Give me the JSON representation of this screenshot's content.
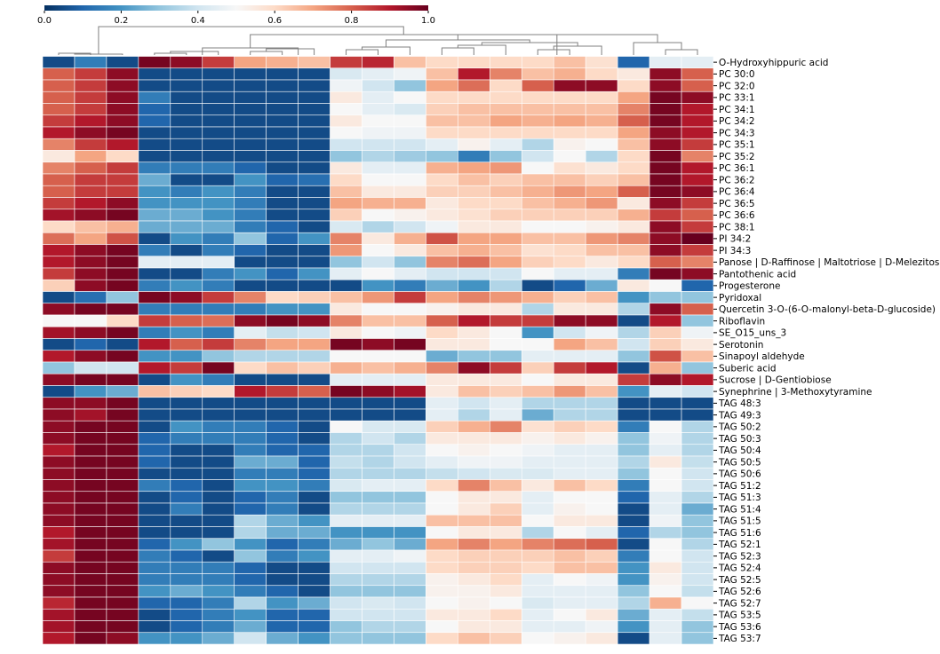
{
  "chart_data": {
    "type": "heatmap",
    "title": "",
    "xlabel": "",
    "ylabel": "",
    "colorbar": {
      "ticks": [
        "0.0",
        "0.2",
        "0.4",
        "0.6",
        "0.8",
        "1.0"
      ],
      "tick_values": [
        0,
        0.2,
        0.4,
        0.6,
        0.8,
        1.0
      ],
      "range": [
        0,
        1
      ],
      "colormap": "RdBu_r",
      "placement": "top-left"
    },
    "row_labels": [
      "O-Hydroxyhippuric acid",
      "PC 30:0",
      "PC 32:0",
      "PC 33:1",
      "PC 34:1",
      "PC 34:2",
      "PC 34:3",
      "PC 35:1",
      "PC 35:2",
      "PC 36:1",
      "PC 36:2",
      "PC 36:4",
      "PC 36:5",
      "PC 36:6",
      "PC 38:1",
      "PI 34:2",
      "PI 34:3",
      "Panose | D-Raffinose | Maltotriose | D-Melezitose",
      "Pantothenic acid",
      "Progesterone",
      "Pyridoxal",
      "Quercetin 3-O-(6-O-malonyl-beta-D-glucoside)",
      "Riboflavin",
      "SE_O15_uns_3",
      "Serotonin",
      "Sinapoyl aldehyde",
      "Suberic acid",
      "Sucrose | D-Gentiobiose",
      "Synephrine | 3-Methoxytyramine",
      "TAG 48:3",
      "TAG 49:3",
      "TAG 50:2",
      "TAG 50:3",
      "TAG 50:4",
      "TAG 50:5",
      "TAG 50:6",
      "TAG 51:2",
      "TAG 51:3",
      "TAG 51:4",
      "TAG 51:5",
      "TAG 51:6",
      "TAG 52:1",
      "TAG 52:3",
      "TAG 52:4",
      "TAG 52:5",
      "TAG 52:6",
      "TAG 52:7",
      "TAG 53:5",
      "TAG 53:6",
      "TAG 53:7"
    ],
    "n_columns": 21,
    "column_labels": [],
    "values": [
      [
        0.05,
        0.15,
        0.05,
        0.98,
        0.95,
        0.85,
        0.7,
        0.68,
        0.65,
        0.85,
        0.88,
        0.65,
        0.6,
        0.6,
        0.6,
        0.6,
        0.65,
        0.58,
        0.1,
        0.45,
        0.45
      ],
      [
        0.8,
        0.85,
        0.95,
        0.05,
        0.05,
        0.05,
        0.05,
        0.05,
        0.05,
        0.42,
        0.45,
        0.48,
        0.65,
        0.9,
        0.75,
        0.65,
        0.68,
        0.6,
        0.55,
        0.95,
        0.8
      ],
      [
        0.8,
        0.85,
        0.95,
        0.05,
        0.05,
        0.05,
        0.05,
        0.05,
        0.05,
        0.48,
        0.4,
        0.3,
        0.7,
        0.78,
        0.6,
        0.8,
        0.95,
        0.95,
        0.6,
        0.95,
        0.8
      ],
      [
        0.8,
        0.85,
        0.95,
        0.15,
        0.05,
        0.05,
        0.05,
        0.05,
        0.05,
        0.55,
        0.45,
        0.5,
        0.6,
        0.6,
        0.6,
        0.6,
        0.6,
        0.6,
        0.7,
        0.98,
        0.95
      ],
      [
        0.8,
        0.85,
        0.95,
        0.1,
        0.05,
        0.05,
        0.05,
        0.05,
        0.05,
        0.5,
        0.45,
        0.42,
        0.62,
        0.65,
        0.65,
        0.65,
        0.65,
        0.65,
        0.75,
        0.98,
        0.9
      ],
      [
        0.85,
        0.9,
        0.95,
        0.1,
        0.05,
        0.05,
        0.05,
        0.05,
        0.05,
        0.55,
        0.5,
        0.5,
        0.65,
        0.65,
        0.7,
        0.68,
        0.7,
        0.68,
        0.8,
        0.98,
        0.9
      ],
      [
        0.9,
        0.95,
        0.98,
        0.05,
        0.05,
        0.05,
        0.05,
        0.05,
        0.05,
        0.5,
        0.48,
        0.48,
        0.6,
        0.6,
        0.6,
        0.6,
        0.6,
        0.6,
        0.7,
        0.95,
        0.9
      ],
      [
        0.75,
        0.85,
        0.9,
        0.05,
        0.05,
        0.05,
        0.05,
        0.05,
        0.05,
        0.4,
        0.4,
        0.4,
        0.45,
        0.52,
        0.45,
        0.35,
        0.52,
        0.5,
        0.65,
        0.95,
        0.85
      ],
      [
        0.55,
        0.7,
        0.6,
        0.05,
        0.05,
        0.05,
        0.05,
        0.05,
        0.05,
        0.3,
        0.35,
        0.32,
        0.3,
        0.15,
        0.3,
        0.4,
        0.5,
        0.35,
        0.6,
        0.98,
        0.75
      ],
      [
        0.75,
        0.8,
        0.85,
        0.15,
        0.15,
        0.15,
        0.1,
        0.05,
        0.05,
        0.55,
        0.45,
        0.45,
        0.68,
        0.7,
        0.72,
        0.5,
        0.58,
        0.55,
        0.6,
        0.98,
        0.9
      ],
      [
        0.8,
        0.85,
        0.85,
        0.25,
        0.05,
        0.05,
        0.2,
        0.1,
        0.12,
        0.6,
        0.5,
        0.5,
        0.6,
        0.65,
        0.62,
        0.65,
        0.65,
        0.62,
        0.65,
        0.98,
        0.9
      ],
      [
        0.8,
        0.85,
        0.85,
        0.2,
        0.15,
        0.2,
        0.15,
        0.05,
        0.05,
        0.65,
        0.55,
        0.55,
        0.62,
        0.62,
        0.65,
        0.68,
        0.72,
        0.7,
        0.8,
        0.98,
        0.95
      ],
      [
        0.85,
        0.9,
        0.95,
        0.2,
        0.2,
        0.2,
        0.15,
        0.05,
        0.05,
        0.7,
        0.68,
        0.68,
        0.55,
        0.6,
        0.6,
        0.65,
        0.68,
        0.72,
        0.55,
        0.95,
        0.85
      ],
      [
        0.92,
        0.95,
        0.98,
        0.25,
        0.25,
        0.2,
        0.15,
        0.05,
        0.05,
        0.62,
        0.5,
        0.52,
        0.55,
        0.58,
        0.62,
        0.62,
        0.62,
        0.62,
        0.68,
        0.85,
        0.8
      ],
      [
        0.6,
        0.65,
        0.68,
        0.25,
        0.25,
        0.25,
        0.15,
        0.1,
        0.05,
        0.42,
        0.35,
        0.4,
        0.48,
        0.55,
        0.55,
        0.5,
        0.5,
        0.52,
        0.55,
        0.95,
        0.85
      ],
      [
        0.78,
        0.7,
        0.82,
        0.05,
        0.2,
        0.15,
        0.3,
        0.1,
        0.2,
        0.75,
        0.55,
        0.68,
        0.82,
        0.7,
        0.7,
        0.65,
        0.65,
        0.72,
        0.75,
        0.95,
        1.0
      ],
      [
        0.9,
        0.95,
        0.98,
        0.15,
        0.05,
        0.15,
        0.1,
        0.05,
        0.05,
        0.72,
        0.5,
        0.55,
        0.65,
        0.68,
        0.65,
        0.58,
        0.6,
        0.65,
        0.65,
        0.95,
        0.85
      ],
      [
        0.9,
        0.95,
        0.98,
        0.45,
        0.45,
        0.45,
        0.05,
        0.05,
        0.05,
        0.3,
        0.4,
        0.3,
        0.75,
        0.78,
        0.7,
        0.62,
        0.6,
        0.55,
        0.6,
        0.8,
        0.75
      ],
      [
        0.85,
        0.95,
        0.98,
        0.05,
        0.05,
        0.15,
        0.2,
        0.1,
        0.2,
        0.45,
        0.5,
        0.45,
        0.4,
        0.4,
        0.4,
        0.5,
        0.45,
        0.45,
        0.15,
        0.98,
        0.95
      ],
      [
        0.62,
        0.95,
        0.98,
        0.15,
        0.2,
        0.15,
        0.05,
        0.05,
        0.05,
        0.05,
        0.2,
        0.15,
        0.25,
        0.2,
        0.35,
        0.05,
        0.1,
        0.25,
        0.55,
        0.5,
        0.1
      ],
      [
        0.05,
        0.12,
        0.3,
        0.98,
        0.95,
        0.85,
        0.75,
        0.6,
        0.62,
        0.65,
        0.72,
        0.85,
        0.7,
        0.75,
        0.72,
        0.68,
        0.62,
        0.65,
        0.2,
        0.3,
        0.3
      ],
      [
        0.95,
        0.98,
        0.98,
        0.15,
        0.15,
        0.15,
        0.15,
        0.2,
        0.2,
        0.55,
        0.5,
        0.5,
        0.52,
        0.55,
        0.55,
        0.35,
        0.55,
        0.55,
        0.35,
        0.95,
        0.8
      ],
      [
        0.5,
        0.5,
        0.6,
        0.85,
        0.8,
        0.78,
        0.95,
        0.98,
        0.95,
        0.75,
        0.65,
        0.65,
        0.8,
        0.9,
        0.85,
        0.85,
        0.95,
        0.95,
        0.05,
        0.9,
        0.3
      ],
      [
        0.92,
        0.95,
        0.98,
        0.15,
        0.2,
        0.15,
        0.45,
        0.38,
        0.4,
        0.55,
        0.5,
        0.48,
        0.6,
        0.55,
        0.5,
        0.2,
        0.4,
        0.48,
        0.35,
        0.62,
        0.48
      ],
      [
        0.05,
        0.1,
        0.05,
        0.9,
        0.8,
        0.85,
        0.75,
        0.7,
        0.7,
        0.98,
        0.95,
        0.98,
        0.55,
        0.55,
        0.5,
        0.5,
        0.7,
        0.65,
        0.4,
        0.62,
        0.55
      ],
      [
        0.9,
        0.95,
        0.98,
        0.2,
        0.2,
        0.3,
        0.35,
        0.35,
        0.35,
        0.5,
        0.5,
        0.5,
        0.25,
        0.3,
        0.3,
        0.45,
        0.45,
        0.45,
        0.3,
        0.82,
        0.65
      ],
      [
        0.3,
        0.4,
        0.4,
        0.9,
        0.85,
        0.98,
        0.6,
        0.65,
        0.62,
        0.68,
        0.65,
        0.68,
        0.75,
        0.95,
        0.85,
        0.62,
        0.85,
        0.9,
        0.05,
        0.68,
        0.3
      ],
      [
        0.95,
        0.98,
        0.98,
        0.05,
        0.2,
        0.15,
        0.05,
        0.05,
        0.05,
        0.45,
        0.45,
        0.45,
        0.55,
        0.55,
        0.55,
        0.5,
        0.55,
        0.55,
        0.85,
        0.95,
        0.9
      ],
      [
        0.05,
        0.2,
        0.25,
        0.65,
        0.62,
        0.6,
        0.9,
        0.85,
        0.8,
        0.98,
        0.95,
        0.92,
        0.55,
        0.65,
        0.62,
        0.65,
        0.72,
        0.65,
        0.2,
        0.45,
        0.4
      ],
      [
        0.95,
        0.95,
        0.98,
        0.05,
        0.05,
        0.05,
        0.05,
        0.05,
        0.05,
        0.05,
        0.05,
        0.05,
        0.45,
        0.4,
        0.45,
        0.35,
        0.35,
        0.35,
        0.05,
        0.05,
        0.05
      ],
      [
        0.95,
        0.92,
        0.98,
        0.05,
        0.05,
        0.05,
        0.05,
        0.05,
        0.05,
        0.05,
        0.05,
        0.05,
        0.45,
        0.35,
        0.45,
        0.25,
        0.35,
        0.35,
        0.05,
        0.05,
        0.05
      ],
      [
        0.95,
        0.98,
        0.98,
        0.05,
        0.2,
        0.15,
        0.15,
        0.1,
        0.05,
        0.5,
        0.42,
        0.42,
        0.62,
        0.68,
        0.75,
        0.58,
        0.62,
        0.6,
        0.15,
        0.5,
        0.35
      ],
      [
        0.95,
        0.98,
        0.98,
        0.1,
        0.15,
        0.15,
        0.15,
        0.1,
        0.05,
        0.35,
        0.4,
        0.35,
        0.55,
        0.55,
        0.55,
        0.52,
        0.55,
        0.52,
        0.3,
        0.48,
        0.35
      ],
      [
        0.9,
        0.98,
        0.98,
        0.1,
        0.05,
        0.05,
        0.15,
        0.1,
        0.1,
        0.35,
        0.35,
        0.4,
        0.5,
        0.52,
        0.5,
        0.48,
        0.45,
        0.45,
        0.3,
        0.45,
        0.35
      ],
      [
        0.95,
        0.98,
        0.98,
        0.1,
        0.05,
        0.05,
        0.25,
        0.25,
        0.1,
        0.38,
        0.35,
        0.4,
        0.45,
        0.48,
        0.48,
        0.45,
        0.45,
        0.45,
        0.35,
        0.55,
        0.38
      ],
      [
        0.95,
        0.98,
        0.98,
        0.05,
        0.05,
        0.05,
        0.15,
        0.15,
        0.1,
        0.35,
        0.35,
        0.35,
        0.38,
        0.4,
        0.42,
        0.42,
        0.45,
        0.45,
        0.3,
        0.5,
        0.4
      ],
      [
        0.95,
        0.98,
        0.98,
        0.15,
        0.1,
        0.05,
        0.2,
        0.2,
        0.15,
        0.42,
        0.45,
        0.45,
        0.6,
        0.75,
        0.65,
        0.55,
        0.65,
        0.6,
        0.15,
        0.5,
        0.4
      ],
      [
        0.95,
        0.98,
        0.98,
        0.05,
        0.1,
        0.05,
        0.1,
        0.15,
        0.05,
        0.3,
        0.3,
        0.3,
        0.5,
        0.55,
        0.55,
        0.45,
        0.5,
        0.5,
        0.1,
        0.45,
        0.35
      ],
      [
        0.95,
        0.98,
        0.98,
        0.05,
        0.15,
        0.05,
        0.1,
        0.15,
        0.05,
        0.35,
        0.35,
        0.35,
        0.5,
        0.55,
        0.62,
        0.45,
        0.52,
        0.5,
        0.05,
        0.45,
        0.25
      ],
      [
        0.95,
        0.98,
        0.98,
        0.05,
        0.05,
        0.05,
        0.35,
        0.25,
        0.2,
        0.45,
        0.45,
        0.45,
        0.65,
        0.65,
        0.65,
        0.5,
        0.55,
        0.55,
        0.05,
        0.48,
        0.3
      ],
      [
        0.9,
        0.98,
        0.98,
        0.05,
        0.05,
        0.05,
        0.35,
        0.25,
        0.25,
        0.2,
        0.2,
        0.2,
        0.5,
        0.55,
        0.55,
        0.35,
        0.5,
        0.45,
        0.1,
        0.35,
        0.3
      ],
      [
        0.92,
        0.98,
        0.98,
        0.1,
        0.2,
        0.3,
        0.2,
        0.1,
        0.15,
        0.25,
        0.3,
        0.25,
        0.7,
        0.75,
        0.7,
        0.75,
        0.78,
        0.8,
        0.05,
        0.5,
        0.35
      ],
      [
        0.85,
        0.98,
        0.98,
        0.15,
        0.1,
        0.05,
        0.3,
        0.15,
        0.2,
        0.45,
        0.45,
        0.48,
        0.6,
        0.62,
        0.62,
        0.62,
        0.65,
        0.62,
        0.15,
        0.5,
        0.4
      ],
      [
        0.95,
        0.98,
        0.98,
        0.15,
        0.15,
        0.15,
        0.1,
        0.05,
        0.05,
        0.4,
        0.4,
        0.4,
        0.6,
        0.62,
        0.62,
        0.6,
        0.65,
        0.65,
        0.2,
        0.55,
        0.4
      ],
      [
        0.95,
        0.98,
        0.98,
        0.15,
        0.15,
        0.15,
        0.1,
        0.05,
        0.05,
        0.35,
        0.35,
        0.35,
        0.52,
        0.55,
        0.6,
        0.45,
        0.5,
        0.48,
        0.2,
        0.52,
        0.4
      ],
      [
        0.95,
        0.98,
        0.98,
        0.2,
        0.25,
        0.2,
        0.15,
        0.1,
        0.05,
        0.3,
        0.3,
        0.3,
        0.52,
        0.52,
        0.55,
        0.45,
        0.45,
        0.45,
        0.3,
        0.5,
        0.38
      ],
      [
        0.88,
        0.98,
        0.98,
        0.1,
        0.1,
        0.15,
        0.35,
        0.2,
        0.25,
        0.4,
        0.42,
        0.4,
        0.5,
        0.52,
        0.5,
        0.42,
        0.45,
        0.45,
        0.35,
        0.68,
        0.5
      ],
      [
        0.92,
        0.98,
        0.98,
        0.05,
        0.1,
        0.15,
        0.2,
        0.1,
        0.1,
        0.4,
        0.4,
        0.4,
        0.55,
        0.55,
        0.6,
        0.45,
        0.5,
        0.55,
        0.25,
        0.45,
        0.38
      ],
      [
        0.92,
        0.98,
        0.98,
        0.05,
        0.1,
        0.15,
        0.25,
        0.1,
        0.1,
        0.3,
        0.35,
        0.35,
        0.5,
        0.55,
        0.55,
        0.45,
        0.45,
        0.48,
        0.2,
        0.45,
        0.3
      ],
      [
        0.9,
        0.98,
        0.95,
        0.2,
        0.2,
        0.25,
        0.4,
        0.25,
        0.2,
        0.3,
        0.3,
        0.3,
        0.6,
        0.65,
        0.62,
        0.5,
        0.52,
        0.55,
        0.05,
        0.45,
        0.3
      ]
    ],
    "dendrogram": "column clustering shown above heatmap"
  }
}
